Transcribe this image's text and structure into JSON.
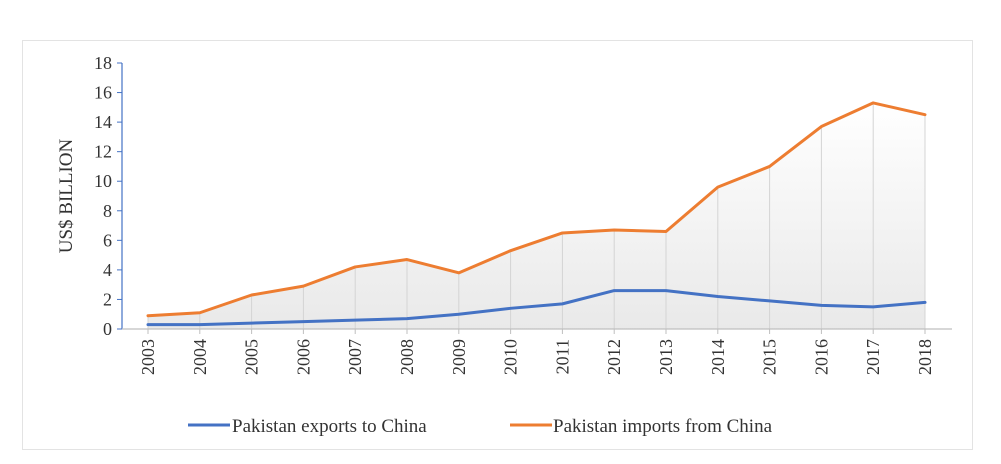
{
  "chart_data": {
    "type": "line",
    "title": "",
    "xlabel": "",
    "ylabel": "US$ BILLION",
    "ylim": [
      0,
      18
    ],
    "yticks": [
      0,
      2,
      4,
      6,
      8,
      10,
      12,
      14,
      16,
      18
    ],
    "categories": [
      "2003",
      "2004",
      "2005",
      "2006",
      "2007",
      "2008",
      "2009",
      "2010",
      "2011",
      "2012",
      "2013",
      "2014",
      "2015",
      "2016",
      "2017",
      "2018"
    ],
    "series": [
      {
        "name": "Pakistan exports to China",
        "color": "#4472c4",
        "values": [
          0.3,
          0.3,
          0.4,
          0.5,
          0.6,
          0.7,
          1.0,
          1.4,
          1.7,
          2.6,
          2.6,
          2.2,
          1.9,
          1.6,
          1.5,
          1.8
        ]
      },
      {
        "name": "Pakistan imports from China",
        "color": "#ed7d31",
        "values": [
          0.9,
          1.1,
          2.3,
          2.9,
          4.2,
          4.7,
          3.8,
          5.3,
          6.5,
          6.7,
          6.6,
          9.6,
          11.0,
          13.7,
          15.3,
          14.5
        ]
      }
    ],
    "grid": "vertical drop lines",
    "legend_position": "bottom"
  }
}
